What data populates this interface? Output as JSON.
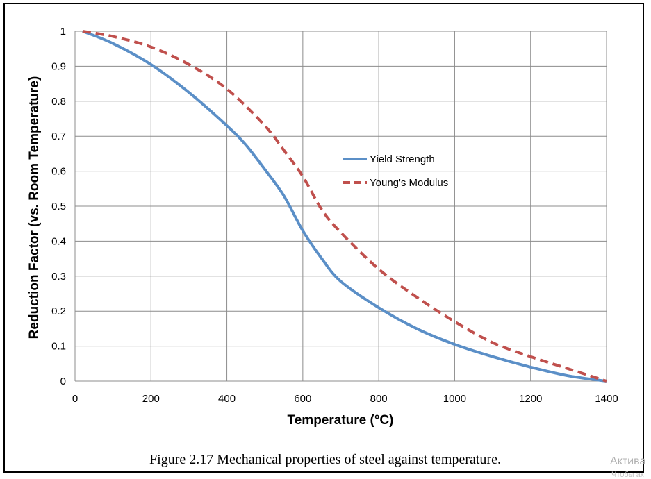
{
  "chart_data": {
    "type": "line",
    "xlabel": "Temperature (°C)",
    "ylabel": "Reduction Factor (vs. Room Temperature)",
    "xlim": [
      0,
      1400
    ],
    "ylim": [
      0,
      1
    ],
    "x_ticks": [
      "0",
      "200",
      "400",
      "600",
      "800",
      "1000",
      "1200",
      "1400"
    ],
    "y_ticks": [
      "0",
      "0.1",
      "0.2",
      "0.3",
      "0.4",
      "0.5",
      "0.6",
      "0.7",
      "0.8",
      "0.9",
      "1"
    ],
    "grid": true,
    "legend_position": "center-right",
    "series": [
      {
        "name": "Yield Strength",
        "color": "#5b8fc7",
        "style": "solid",
        "points": [
          [
            20,
            1
          ],
          [
            100,
            0.965
          ],
          [
            200,
            0.905
          ],
          [
            300,
            0.825
          ],
          [
            400,
            0.73
          ],
          [
            450,
            0.675
          ],
          [
            500,
            0.605
          ],
          [
            550,
            0.53
          ],
          [
            600,
            0.43
          ],
          [
            650,
            0.35
          ],
          [
            700,
            0.285
          ],
          [
            800,
            0.21
          ],
          [
            900,
            0.15
          ],
          [
            1000,
            0.105
          ],
          [
            1100,
            0.07
          ],
          [
            1200,
            0.04
          ],
          [
            1300,
            0.015
          ],
          [
            1400,
            0
          ]
        ]
      },
      {
        "name": "Young's Modulus",
        "color": "#c0504d",
        "style": "dashed",
        "points": [
          [
            20,
            1
          ],
          [
            100,
            0.985
          ],
          [
            200,
            0.955
          ],
          [
            300,
            0.905
          ],
          [
            400,
            0.835
          ],
          [
            500,
            0.73
          ],
          [
            550,
            0.66
          ],
          [
            600,
            0.585
          ],
          [
            650,
            0.49
          ],
          [
            700,
            0.425
          ],
          [
            800,
            0.32
          ],
          [
            900,
            0.24
          ],
          [
            1000,
            0.17
          ],
          [
            1100,
            0.11
          ],
          [
            1200,
            0.07
          ],
          [
            1300,
            0.035
          ],
          [
            1400,
            0
          ]
        ]
      }
    ]
  },
  "caption": "Figure 2.17 Mechanical properties of steel against temperature.",
  "watermark": "Актива",
  "watermark2": "Чтобы ак"
}
